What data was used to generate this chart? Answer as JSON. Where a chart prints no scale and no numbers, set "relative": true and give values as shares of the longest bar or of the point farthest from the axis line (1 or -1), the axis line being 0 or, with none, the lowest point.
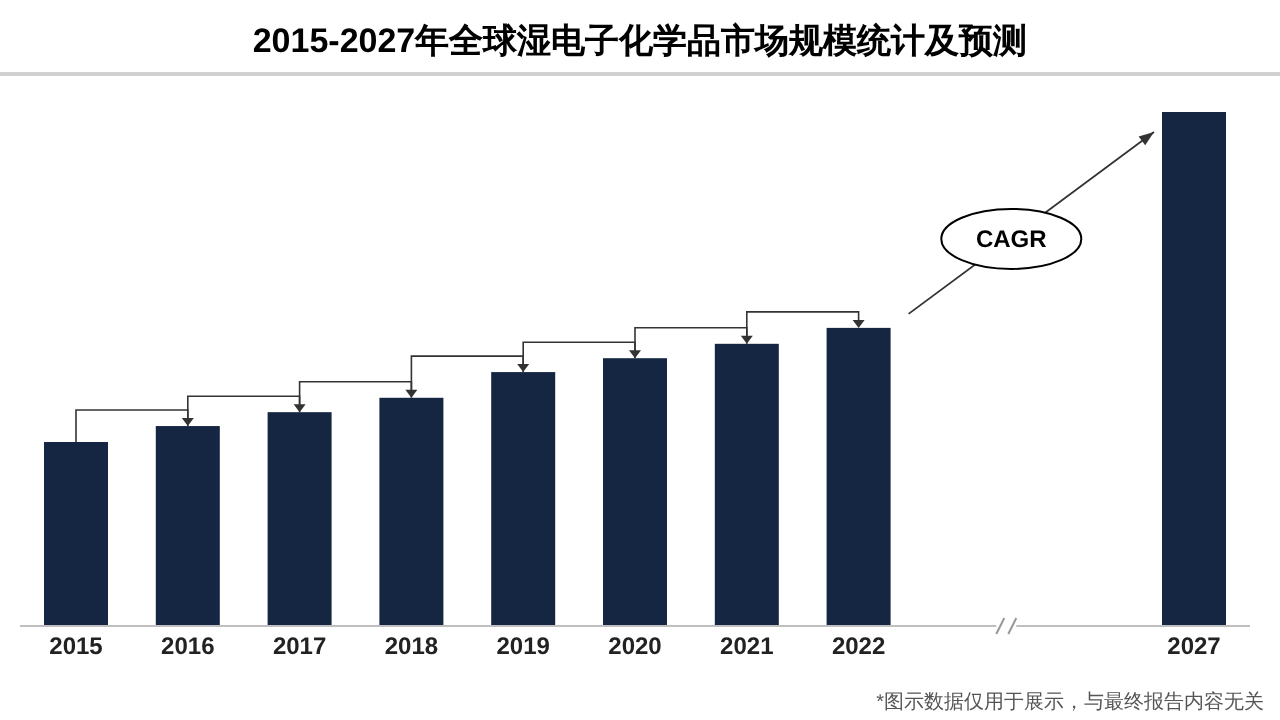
{
  "chart_data": {
    "type": "bar",
    "title": "2015-2027年全球湿电子化学品市场规模统计及预测",
    "relative": true,
    "categories": [
      "2015",
      "2016",
      "2017",
      "2018",
      "2019",
      "2020",
      "2021",
      "2022",
      null,
      null,
      "2027"
    ],
    "values": [
      0.358,
      0.389,
      0.416,
      0.444,
      0.494,
      0.521,
      0.549,
      0.58,
      null,
      null,
      1
    ],
    "color": "#142641",
    "annotations": [
      "CAGR",
      "*图示数据仅用于展示，与最终报告内容无关"
    ]
  }
}
